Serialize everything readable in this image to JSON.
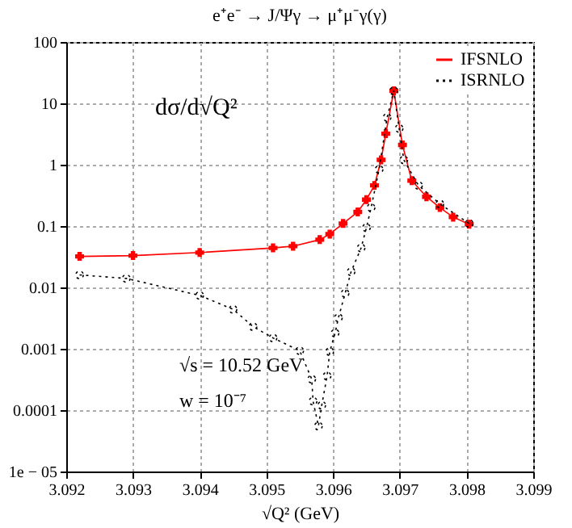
{
  "chart_data": {
    "type": "line",
    "title": "e⁺e⁻ → J/Ψγ → μ⁺μ⁻γ(γ)",
    "xlabel": "√Q² (GeV)",
    "annotations": [
      "dσ/d√Q²",
      "√s = 10.52 GeV",
      "w = 10⁻⁷"
    ],
    "series": [
      {
        "name": "IFSNLO",
        "color": "#ff0000",
        "marker": "cross",
        "line_style": "solid",
        "x": [
          3.0922,
          3.093,
          3.094,
          3.0951,
          3.0954,
          3.0958,
          3.09595,
          3.09615,
          3.09637,
          3.0965,
          3.09662,
          3.09672,
          3.09679,
          3.09691,
          3.09704,
          3.09718,
          3.0974,
          3.0976,
          3.0978,
          3.09804
        ],
        "values": [
          0.032,
          0.033,
          0.037,
          0.044,
          0.047,
          0.06,
          0.074,
          0.11,
          0.17,
          0.27,
          0.46,
          1.2,
          3.2,
          16,
          2.1,
          0.55,
          0.3,
          0.2,
          0.14,
          0.107
        ]
      },
      {
        "name": "ISRNLO",
        "color": "#000000",
        "marker": "circle",
        "line_style": "dotted",
        "x": [
          3.0922,
          3.0929,
          3.094,
          3.0945,
          3.0948,
          3.0951,
          3.0955,
          3.09568,
          3.0957,
          3.09578,
          3.09583,
          3.09591,
          3.09595,
          3.09603,
          3.09608,
          3.09618,
          3.09627,
          3.09642,
          3.0965,
          3.09657,
          3.09669,
          3.09681,
          3.09691,
          3.09699,
          3.09706,
          3.09728,
          3.0976,
          3.09804
        ],
        "values": [
          0.016,
          0.014,
          0.0074,
          0.0044,
          0.0023,
          0.0015,
          0.00093,
          0.00032,
          0.00014,
          5.5e-05,
          0.00012,
          0.00036,
          0.0009,
          0.0018,
          0.0032,
          0.008,
          0.018,
          0.044,
          0.094,
          0.2,
          0.84,
          5.9,
          16,
          3.9,
          1.2,
          0.46,
          0.23,
          0.11
        ]
      }
    ],
    "xlim": [
      3.092,
      3.099
    ],
    "xticks": [
      3.092,
      3.093,
      3.094,
      3.095,
      3.096,
      3.097,
      3.098,
      3.099
    ],
    "ylim": [
      1e-05,
      100
    ],
    "yticks": [
      {
        "value": 1e-05,
        "label": "1e − 05"
      },
      {
        "value": 0.0001,
        "label": "0.0001"
      },
      {
        "value": 0.001,
        "label": "0.001"
      },
      {
        "value": 0.01,
        "label": "0.01"
      },
      {
        "value": 0.1,
        "label": "0.1"
      },
      {
        "value": 1,
        "label": "1"
      },
      {
        "value": 10,
        "label": "10"
      },
      {
        "value": 100,
        "label": "100"
      }
    ],
    "log": "y",
    "grid": true,
    "legend": "top right"
  }
}
